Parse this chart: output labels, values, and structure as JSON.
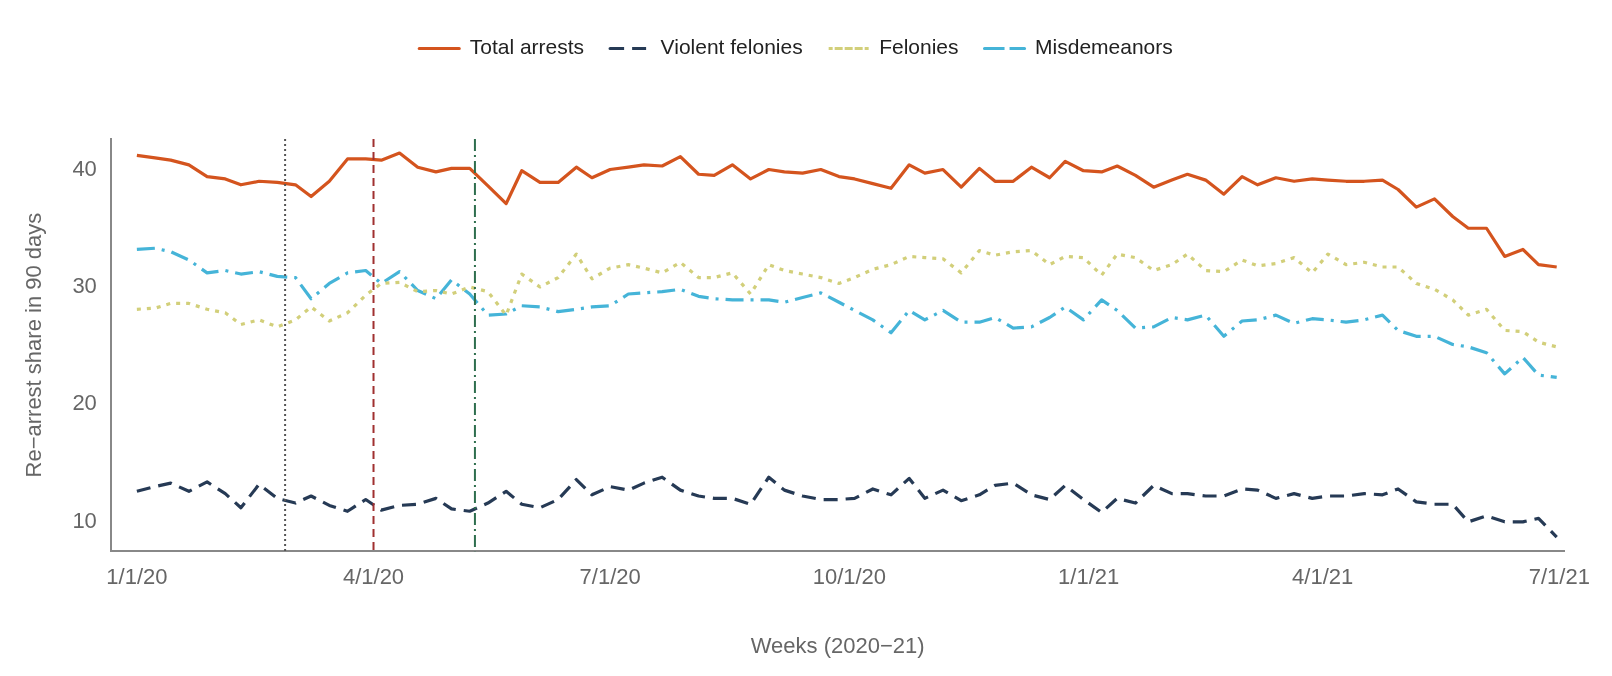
{
  "chart_data": {
    "type": "line",
    "xlabel": "Weeks (2020−21)",
    "ylabel": "Re−arrest share in 90 days",
    "x": [
      "2020-01-01",
      "2020-01-08",
      "2020-01-14",
      "2020-01-21",
      "2020-01-28",
      "2020-02-04",
      "2020-02-10",
      "2020-02-17",
      "2020-02-24",
      "2020-03-02",
      "2020-03-08",
      "2020-03-15",
      "2020-03-22",
      "2020-03-29",
      "2020-04-04",
      "2020-04-11",
      "2020-04-18",
      "2020-04-25",
      "2020-05-01",
      "2020-05-08",
      "2020-05-15",
      "2020-05-22",
      "2020-05-28",
      "2020-06-04",
      "2020-06-11",
      "2020-06-18",
      "2020-06-24",
      "2020-07-01",
      "2020-07-08",
      "2020-07-14",
      "2020-07-21",
      "2020-07-28",
      "2020-08-04",
      "2020-08-10",
      "2020-08-17",
      "2020-08-24",
      "2020-08-31",
      "2020-09-06",
      "2020-09-13",
      "2020-09-20",
      "2020-09-27",
      "2020-10-03",
      "2020-10-10",
      "2020-10-17",
      "2020-10-24",
      "2020-10-30",
      "2020-11-06",
      "2020-11-13",
      "2020-11-20",
      "2020-11-26",
      "2020-12-03",
      "2020-12-10",
      "2020-12-17",
      "2020-12-23",
      "2020-12-30",
      "2021-01-06",
      "2021-01-12",
      "2021-01-19",
      "2021-01-26",
      "2021-02-02",
      "2021-02-08",
      "2021-02-15",
      "2021-02-22",
      "2021-03-01",
      "2021-03-07",
      "2021-03-14",
      "2021-03-21",
      "2021-03-28",
      "2021-04-03",
      "2021-04-10",
      "2021-04-17",
      "2021-04-24",
      "2021-04-30",
      "2021-05-07",
      "2021-05-14",
      "2021-05-21",
      "2021-05-27",
      "2021-06-03",
      "2021-06-10",
      "2021-06-17",
      "2021-06-23",
      "2021-06-30"
    ],
    "series": [
      {
        "name": "Total arrests",
        "color": "#d4541e",
        "line_style": "solid",
        "values": [
          41.2,
          41.0,
          40.8,
          40.4,
          39.4,
          39.2,
          38.7,
          39.0,
          38.9,
          38.7,
          37.7,
          39.0,
          40.9,
          40.9,
          40.8,
          41.4,
          40.2,
          39.8,
          40.1,
          40.1,
          38.6,
          37.1,
          39.9,
          38.9,
          38.9,
          40.2,
          39.3,
          40.0,
          40.2,
          40.4,
          40.3,
          41.1,
          39.6,
          39.5,
          40.4,
          39.2,
          40.0,
          39.8,
          39.7,
          40.0,
          39.4,
          39.2,
          38.8,
          38.4,
          40.4,
          39.7,
          40.0,
          38.5,
          40.1,
          39.0,
          39.0,
          40.2,
          39.3,
          40.7,
          39.9,
          39.8,
          40.3,
          39.5,
          38.5,
          39.1,
          39.6,
          39.1,
          37.9,
          39.4,
          38.7,
          39.3,
          39.0,
          39.2,
          39.1,
          39.0,
          39.0,
          39.1,
          38.3,
          36.8,
          37.5,
          36.0,
          35.0,
          35.0,
          32.6,
          33.2,
          31.9,
          31.7
        ]
      },
      {
        "name": "Violent felonies",
        "color": "#263a55",
        "line_style": "dashed",
        "values": [
          12.6,
          13.0,
          13.3,
          12.6,
          13.4,
          12.4,
          11.2,
          13.2,
          12.0,
          11.6,
          12.2,
          11.4,
          10.9,
          11.9,
          11.0,
          11.4,
          11.5,
          12.0,
          11.1,
          10.9,
          11.6,
          12.6,
          11.5,
          11.2,
          11.9,
          13.6,
          12.3,
          13.0,
          12.7,
          13.3,
          13.8,
          12.7,
          12.2,
          12.0,
          12.0,
          11.5,
          13.8,
          12.7,
          12.2,
          11.9,
          11.9,
          12.0,
          12.8,
          12.3,
          13.7,
          12.0,
          12.7,
          11.8,
          12.3,
          13.1,
          13.3,
          12.3,
          11.9,
          13.1,
          11.9,
          10.8,
          12.0,
          11.6,
          13.1,
          12.4,
          12.4,
          12.2,
          12.2,
          12.8,
          12.7,
          12.0,
          12.4,
          12.0,
          12.2,
          12.2,
          12.4,
          12.3,
          12.8,
          11.7,
          11.5,
          11.5,
          10.0,
          10.5,
          10.0,
          10.0,
          10.3,
          8.7
        ]
      },
      {
        "name": "Felonies",
        "color": "#d2cf7a",
        "line_style": "dotted",
        "values": [
          28.1,
          28.2,
          28.6,
          28.6,
          28.1,
          27.8,
          26.8,
          27.2,
          26.6,
          27.2,
          28.3,
          27.1,
          27.8,
          29.3,
          30.3,
          30.4,
          29.6,
          29.7,
          29.4,
          30.0,
          29.6,
          27.6,
          31.1,
          30.0,
          30.8,
          32.8,
          30.7,
          31.6,
          31.9,
          31.6,
          31.2,
          32.1,
          30.8,
          30.8,
          31.2,
          29.4,
          31.9,
          31.4,
          31.1,
          30.8,
          30.3,
          30.8,
          31.5,
          31.9,
          32.6,
          32.5,
          32.4,
          31.2,
          33.1,
          32.7,
          33.0,
          33.1,
          31.9,
          32.6,
          32.5,
          31.0,
          32.8,
          32.5,
          31.4,
          31.9,
          32.8,
          31.4,
          31.3,
          32.3,
          31.8,
          32.0,
          32.5,
          31.2,
          32.8,
          31.9,
          32.1,
          31.7,
          31.7,
          30.3,
          29.8,
          28.9,
          27.6,
          28.1,
          26.3,
          26.2,
          25.3,
          24.9
        ]
      },
      {
        "name": "Misdemeanors",
        "color": "#45b4d8",
        "line_style": "dashdot",
        "values": [
          33.2,
          33.3,
          33.0,
          32.3,
          31.2,
          31.4,
          31.1,
          31.3,
          30.9,
          30.8,
          29.0,
          30.3,
          31.2,
          31.4,
          30.3,
          31.3,
          29.7,
          29.0,
          30.6,
          29.4,
          27.6,
          27.7,
          28.4,
          28.3,
          27.9,
          28.1,
          28.3,
          28.4,
          29.4,
          29.5,
          29.6,
          29.8,
          29.2,
          29.0,
          28.9,
          28.9,
          28.9,
          28.7,
          29.1,
          29.5,
          28.7,
          28.0,
          27.2,
          26.1,
          28.0,
          27.2,
          28.0,
          27.0,
          27.0,
          27.4,
          26.5,
          26.6,
          27.4,
          28.3,
          27.2,
          28.9,
          28.0,
          26.5,
          26.6,
          27.4,
          27.2,
          27.6,
          25.8,
          27.1,
          27.2,
          27.6,
          26.9,
          27.3,
          27.2,
          27.0,
          27.2,
          27.6,
          26.3,
          25.8,
          25.8,
          25.1,
          24.9,
          24.4,
          22.6,
          24.0,
          22.5,
          22.3
        ]
      }
    ],
    "xlim": [
      "2019-12-22",
      "2021-07-03"
    ],
    "xticks": [
      {
        "value": "2020-01-01",
        "label": "1/1/20"
      },
      {
        "value": "2020-04-01",
        "label": "4/1/20"
      },
      {
        "value": "2020-07-01",
        "label": "7/1/20"
      },
      {
        "value": "2020-10-01",
        "label": "10/1/20"
      },
      {
        "value": "2021-01-01",
        "label": "1/1/21"
      },
      {
        "value": "2021-04-01",
        "label": "4/1/21"
      },
      {
        "value": "2021-07-01",
        "label": "7/1/21"
      }
    ],
    "ylim": [
      7.5,
      42.6
    ],
    "yticks": [
      10,
      20,
      30,
      40
    ],
    "ref_lines": [
      {
        "axis": "x",
        "value": "2020-02-27",
        "color": "#555555",
        "line_style": "dotted"
      },
      {
        "axis": "x",
        "value": "2020-04-01",
        "color": "#a03030",
        "line_style": "dashed"
      },
      {
        "axis": "x",
        "value": "2020-05-10",
        "color": "#2e6e4e",
        "line_style": "dashdot"
      }
    ],
    "grid": false,
    "legend": "top",
    "marker": "none"
  }
}
